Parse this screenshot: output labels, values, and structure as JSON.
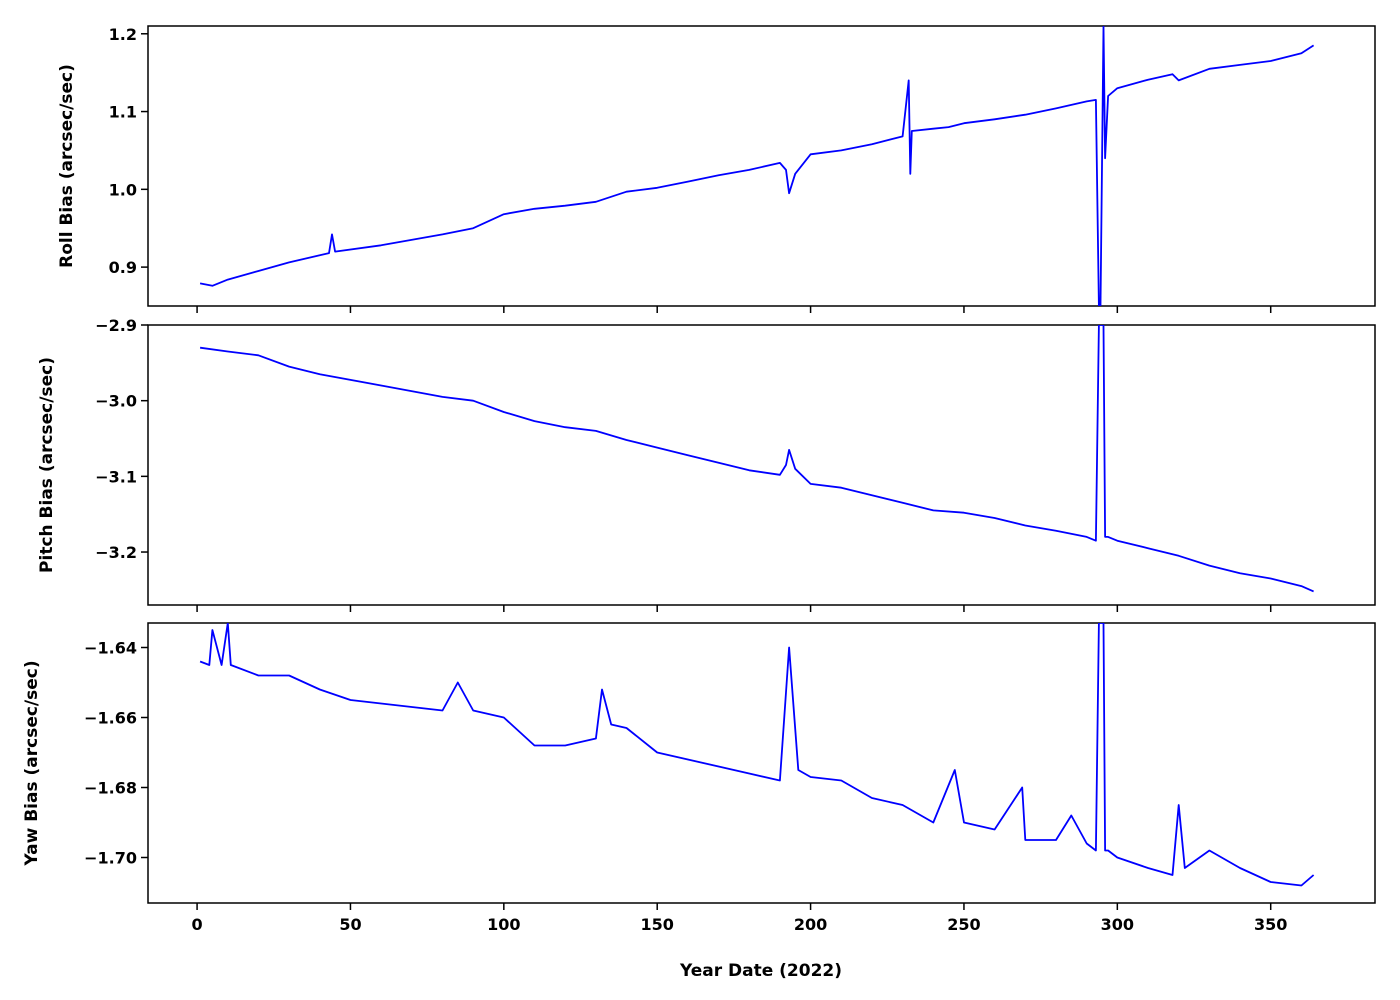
{
  "chart_data": [
    {
      "type": "line",
      "name": "roll-panel",
      "ylabel": "Roll Bias (arcsec/sec)",
      "xlabel": "",
      "xlim": [
        -16,
        384
      ],
      "ylim": [
        0.85,
        1.21
      ],
      "xticks": [
        0,
        50,
        100,
        150,
        200,
        250,
        300,
        350
      ],
      "show_xtick_labels": false,
      "yticks": [
        0.9,
        1.0,
        1.1,
        1.2
      ],
      "ytick_labels": [
        "0.9",
        "1.0",
        "1.1",
        "1.2"
      ],
      "color": "#0000ff",
      "x": [
        1,
        5,
        10,
        20,
        30,
        43,
        44,
        45,
        60,
        80,
        90,
        100,
        110,
        120,
        130,
        140,
        150,
        160,
        170,
        180,
        190,
        192,
        193,
        195,
        200,
        210,
        220,
        230,
        232,
        232.5,
        233,
        240,
        245,
        250,
        260,
        270,
        280,
        290,
        293,
        294,
        294.5,
        295.5,
        296,
        297,
        300,
        310,
        318,
        320,
        330,
        340,
        350,
        360,
        364
      ],
      "values": [
        0.879,
        0.876,
        0.884,
        0.895,
        0.906,
        0.918,
        0.942,
        0.92,
        0.928,
        0.942,
        0.95,
        0.968,
        0.975,
        0.979,
        0.984,
        0.997,
        1.002,
        1.01,
        1.018,
        1.025,
        1.034,
        1.025,
        0.995,
        1.02,
        1.045,
        1.05,
        1.058,
        1.068,
        1.14,
        1.02,
        1.075,
        1.078,
        1.08,
        1.085,
        1.09,
        1.096,
        1.104,
        1.113,
        1.115,
        0.85,
        0.85,
        1.21,
        1.04,
        1.12,
        1.13,
        1.141,
        1.148,
        1.14,
        1.155,
        1.16,
        1.165,
        1.175,
        1.185
      ]
    },
    {
      "type": "line",
      "name": "pitch-panel",
      "ylabel": "Pitch Bias (arcsec/sec)",
      "xlabel": "",
      "xlim": [
        -16,
        384
      ],
      "ylim": [
        -3.27,
        -2.9
      ],
      "xticks": [
        0,
        50,
        100,
        150,
        200,
        250,
        300,
        350
      ],
      "show_xtick_labels": false,
      "yticks": [
        -3.2,
        -3.1,
        -3.0,
        -2.9
      ],
      "ytick_labels": [
        "−3.2",
        "−3.1",
        "−3.0",
        "−2.9"
      ],
      "color": "#0000ff",
      "x": [
        1,
        10,
        20,
        30,
        40,
        60,
        80,
        90,
        100,
        110,
        120,
        130,
        140,
        150,
        160,
        170,
        180,
        190,
        192,
        193,
        195,
        200,
        210,
        220,
        230,
        240,
        250,
        260,
        270,
        280,
        290,
        293,
        294,
        294.5,
        295.5,
        296,
        297,
        300,
        310,
        320,
        330,
        340,
        350,
        360,
        364
      ],
      "values": [
        -2.93,
        -2.935,
        -2.94,
        -2.955,
        -2.965,
        -2.98,
        -2.995,
        -3.0,
        -3.015,
        -3.027,
        -3.035,
        -3.04,
        -3.052,
        -3.062,
        -3.072,
        -3.082,
        -3.092,
        -3.098,
        -3.085,
        -3.065,
        -3.09,
        -3.11,
        -3.115,
        -3.125,
        -3.135,
        -3.145,
        -3.148,
        -3.155,
        -3.165,
        -3.172,
        -3.18,
        -3.185,
        -2.9,
        -2.9,
        -2.9,
        -3.18,
        -3.18,
        -3.185,
        -3.195,
        -3.205,
        -3.218,
        -3.228,
        -3.235,
        -3.245,
        -3.252
      ]
    },
    {
      "type": "line",
      "name": "yaw-panel",
      "ylabel": "Yaw Bias (arcsec/sec)",
      "xlabel": "Year Date (2022)",
      "xlim": [
        -16,
        384
      ],
      "ylim": [
        -1.713,
        -1.633
      ],
      "xticks": [
        0,
        50,
        100,
        150,
        200,
        250,
        300,
        350
      ],
      "xtick_labels": [
        "0",
        "50",
        "100",
        "150",
        "200",
        "250",
        "300",
        "350"
      ],
      "show_xtick_labels": true,
      "yticks": [
        -1.7,
        -1.68,
        -1.66,
        -1.64
      ],
      "ytick_labels": [
        "−1.70",
        "−1.68",
        "−1.66",
        "−1.64"
      ],
      "color": "#0000ff",
      "x": [
        1,
        4,
        5,
        8,
        10,
        11,
        20,
        30,
        40,
        50,
        60,
        70,
        80,
        85,
        90,
        100,
        110,
        120,
        130,
        132,
        135,
        140,
        150,
        160,
        170,
        180,
        190,
        193,
        196,
        200,
        210,
        220,
        230,
        240,
        247,
        250,
        260,
        269,
        270,
        280,
        285,
        290,
        293,
        294,
        294.5,
        295.5,
        296,
        297,
        300,
        310,
        318,
        320,
        322,
        330,
        340,
        350,
        360,
        364
      ],
      "values": [
        -1.644,
        -1.645,
        -1.635,
        -1.645,
        -1.633,
        -1.645,
        -1.648,
        -1.648,
        -1.652,
        -1.655,
        -1.656,
        -1.657,
        -1.658,
        -1.65,
        -1.658,
        -1.66,
        -1.668,
        -1.668,
        -1.666,
        -1.652,
        -1.662,
        -1.663,
        -1.67,
        -1.672,
        -1.674,
        -1.676,
        -1.678,
        -1.64,
        -1.675,
        -1.677,
        -1.678,
        -1.683,
        -1.685,
        -1.69,
        -1.675,
        -1.69,
        -1.692,
        -1.68,
        -1.695,
        -1.695,
        -1.688,
        -1.696,
        -1.698,
        -1.633,
        -1.633,
        -1.633,
        -1.698,
        -1.698,
        -1.7,
        -1.703,
        -1.705,
        -1.685,
        -1.703,
        -1.698,
        -1.703,
        -1.707,
        -1.708,
        -1.705
      ]
    }
  ]
}
